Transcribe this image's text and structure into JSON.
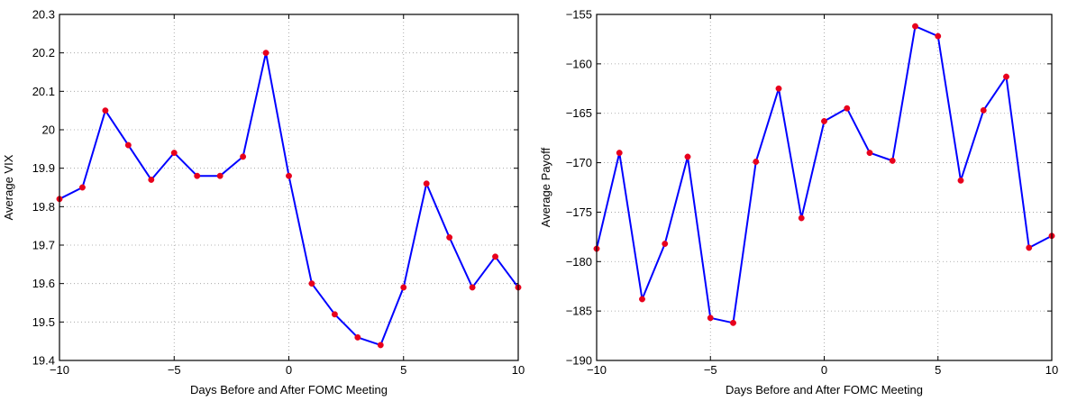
{
  "chart_data": [
    {
      "type": "line",
      "title": "",
      "xlabel": "Days Before and After FOMC Meeting",
      "ylabel": "Average VIX",
      "xlim": [
        -10,
        10
      ],
      "ylim": [
        19.4,
        20.3
      ],
      "x_ticks": [
        "-10",
        "-5",
        "0",
        "5",
        "10"
      ],
      "y_ticks": [
        "19.4",
        "19.5",
        "19.6",
        "19.7",
        "19.8",
        "19.9",
        "20",
        "20.1",
        "20.2",
        "20.3"
      ],
      "grid": true,
      "x": [
        -10,
        -9,
        -8,
        -7,
        -6,
        -5,
        -4,
        -3,
        -2,
        -1,
        0,
        1,
        2,
        3,
        4,
        5,
        6,
        7,
        8,
        9,
        10
      ],
      "series": [
        {
          "line_color": "#0000ff",
          "marker_color": "#e8001c",
          "values": [
            19.82,
            19.85,
            20.05,
            19.96,
            19.87,
            19.94,
            19.88,
            19.88,
            19.93,
            20.2,
            19.88,
            19.6,
            19.52,
            19.46,
            19.44,
            19.59,
            19.86,
            19.72,
            19.59,
            19.67,
            19.59
          ]
        }
      ]
    },
    {
      "type": "line",
      "title": "",
      "xlabel": "Days Before and After FOMC Meeting",
      "ylabel": "Average Payoff",
      "xlim": [
        -10,
        10
      ],
      "ylim": [
        -190,
        -155
      ],
      "x_ticks": [
        "-10",
        "-5",
        "0",
        "5",
        "10"
      ],
      "y_ticks": [
        "-190",
        "-185",
        "-180",
        "-175",
        "-170",
        "-165",
        "-160",
        "-155"
      ],
      "grid": true,
      "x": [
        -10,
        -9,
        -8,
        -7,
        -6,
        -5,
        -4,
        -3,
        -2,
        -1,
        0,
        1,
        2,
        3,
        4,
        5,
        6,
        7,
        8,
        9,
        10
      ],
      "series": [
        {
          "line_color": "#0000ff",
          "marker_color": "#e8001c",
          "values": [
            -178.7,
            -169.0,
            -183.8,
            -178.2,
            -169.4,
            -185.7,
            -186.2,
            -169.9,
            -162.5,
            -175.6,
            -165.8,
            -164.5,
            -169.0,
            -169.8,
            -156.2,
            -157.2,
            -171.8,
            -164.7,
            -161.3,
            -178.6,
            -177.4
          ]
        }
      ]
    }
  ]
}
